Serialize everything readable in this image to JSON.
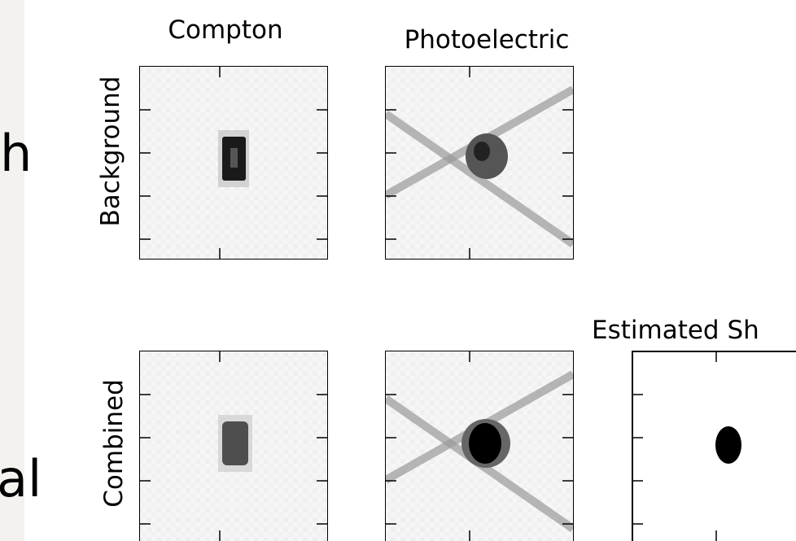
{
  "side_text": [
    "h",
    "al"
  ],
  "columns": [
    "Compton",
    "Photoelectric",
    "Estimated Sh"
  ],
  "rows": [
    "Background",
    "Combined"
  ]
}
